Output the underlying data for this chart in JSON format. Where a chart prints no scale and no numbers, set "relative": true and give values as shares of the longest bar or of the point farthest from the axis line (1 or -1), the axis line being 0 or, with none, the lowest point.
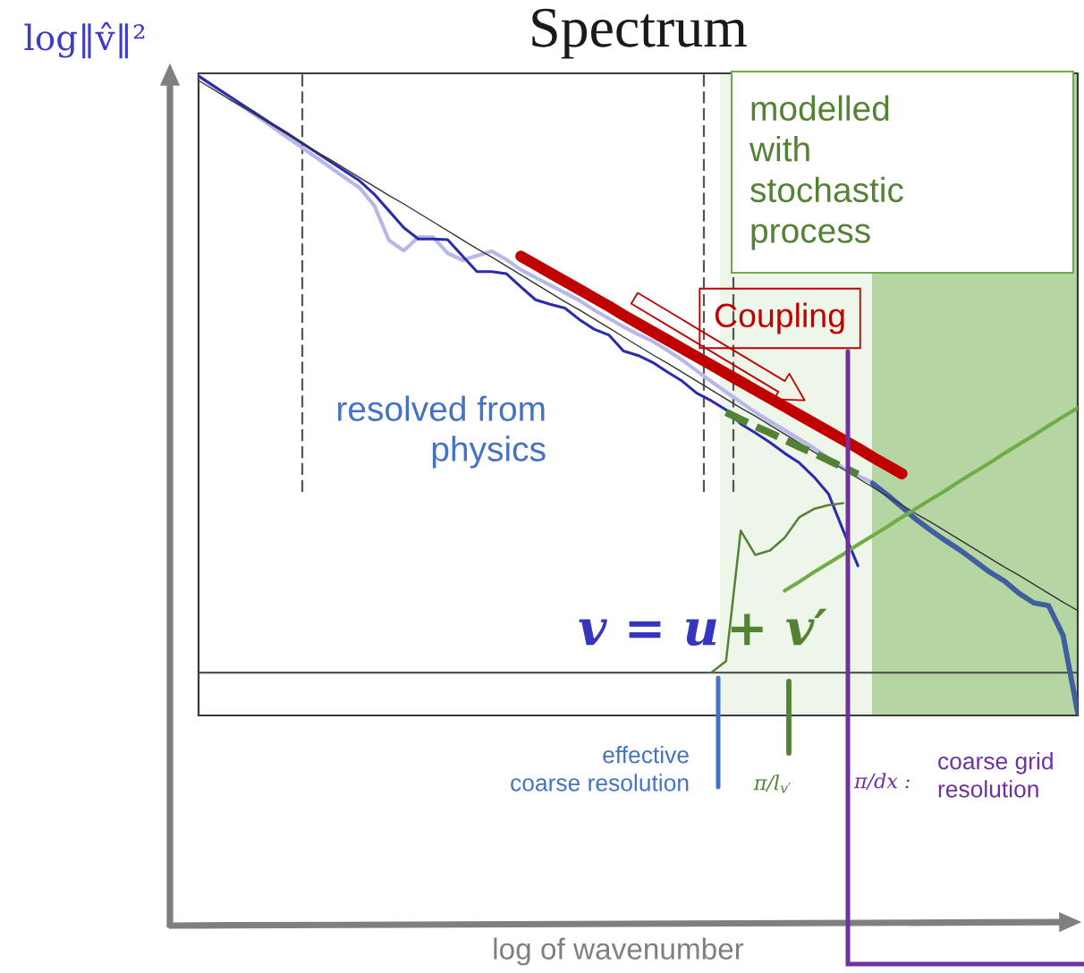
{
  "chart_data": {
    "type": "line",
    "title": "Spectrum",
    "ylabel": "log‖v̂‖²",
    "relative": true,
    "categories": [
      null,
      null,
      null,
      null,
      null,
      null,
      null,
      null,
      null,
      null,
      null,
      null,
      null,
      null,
      null,
      null,
      null,
      null,
      null,
      null,
      null,
      null,
      null,
      null,
      null,
      null,
      null,
      null,
      null,
      null,
      null,
      null,
      null,
      null,
      null,
      null,
      null,
      null,
      null,
      null,
      null,
      null,
      null,
      null,
      null,
      null,
      null,
      null,
      null,
      null,
      null,
      null,
      null,
      null,
      null,
      null,
      null,
      null,
      null,
      null,
      null
    ],
    "series": [
      {
        "color": "#b8b8e8",
        "values": [
          1.0,
          0.984,
          0.968,
          0.952,
          0.937,
          0.921,
          0.905,
          0.889,
          0.873,
          0.857,
          0.841,
          0.825,
          0.797,
          0.743,
          0.727,
          0.748,
          0.748,
          0.723,
          0.712,
          0.719,
          0.726,
          0.713,
          0.697,
          0.685,
          0.673,
          0.661,
          0.649,
          0.634,
          0.621,
          0.608,
          0.596,
          0.585,
          0.571,
          0.556,
          0.539,
          0.522,
          0.506,
          0.49,
          0.474,
          0.46,
          0.446,
          0.432,
          0.418,
          0.402,
          0.387,
          0.375,
          0.364,
          null,
          null,
          null,
          null,
          null,
          null,
          null,
          null,
          null,
          null,
          null,
          null,
          null,
          null
        ]
      },
      {
        "color": "#3f5f9f",
        "values": [
          null,
          null,
          null,
          null,
          null,
          null,
          null,
          null,
          null,
          null,
          null,
          null,
          null,
          null,
          null,
          null,
          null,
          null,
          null,
          null,
          null,
          null,
          null,
          null,
          null,
          null,
          null,
          null,
          null,
          null,
          null,
          null,
          null,
          null,
          null,
          null,
          null,
          null,
          null,
          null,
          null,
          null,
          null,
          null,
          null,
          null,
          0.363,
          0.345,
          0.326,
          0.306,
          0.289,
          0.273,
          0.258,
          0.241,
          0.224,
          0.21,
          0.191,
          0.176,
          0.172,
          0.125,
          0.004
        ]
      },
      {
        "color": "#2b2bb0",
        "values": [
          1.0,
          0.985,
          0.97,
          0.955,
          0.94,
          0.925,
          0.911,
          0.896,
          0.881,
          0.866,
          0.851,
          0.836,
          0.815,
          0.789,
          0.763,
          0.745,
          0.745,
          0.744,
          0.719,
          0.694,
          0.694,
          0.691,
          0.67,
          0.65,
          0.643,
          0.637,
          0.619,
          0.604,
          0.595,
          0.57,
          0.563,
          0.552,
          0.537,
          0.523,
          0.504,
          0.492,
          0.478,
          0.456,
          0.442,
          0.427,
          0.41,
          0.395,
          0.373,
          0.346,
          0.289,
          0.234,
          null,
          null,
          null,
          null,
          null,
          null,
          null,
          null,
          null,
          null,
          null,
          null,
          null,
          null,
          null
        ]
      },
      {
        "color": "#333333",
        "values": [
          0.993,
          0.979,
          0.965,
          0.952,
          0.938,
          0.924,
          0.91,
          0.896,
          0.882,
          0.869,
          0.855,
          0.841,
          0.827,
          0.813,
          0.8,
          0.786,
          0.772,
          0.758,
          0.744,
          0.73,
          0.717,
          0.703,
          0.689,
          0.675,
          0.661,
          0.647,
          0.634,
          0.62,
          0.606,
          0.592,
          0.578,
          0.564,
          0.551,
          0.537,
          0.523,
          0.509,
          0.495,
          0.481,
          0.468,
          0.454,
          0.44,
          0.426,
          0.412,
          0.398,
          0.385,
          0.371,
          0.357,
          0.343,
          0.329,
          0.315,
          0.302,
          0.288,
          0.274,
          0.26,
          0.246,
          0.232,
          0.219,
          0.205,
          0.191,
          0.177,
          0.164
        ]
      },
      {
        "color": "#548235",
        "values": [
          null,
          null,
          null,
          null,
          null,
          null,
          null,
          null,
          null,
          null,
          null,
          null,
          null,
          null,
          null,
          null,
          null,
          null,
          null,
          null,
          null,
          null,
          null,
          null,
          null,
          null,
          null,
          null,
          null,
          null,
          null,
          null,
          null,
          null,
          null,
          0.067,
          0.085,
          0.289,
          0.251,
          0.258,
          0.278,
          0.31,
          0.323,
          0.329,
          0.332,
          null,
          null,
          null,
          null,
          null,
          null,
          null,
          null,
          null,
          null,
          null,
          null,
          null,
          null,
          null,
          null
        ]
      },
      {
        "color": "#548235",
        "line_style": "dashed",
        "values": [
          null,
          null,
          null,
          null,
          null,
          null,
          null,
          null,
          null,
          null,
          null,
          null,
          null,
          null,
          null,
          null,
          null,
          null,
          null,
          null,
          null,
          null,
          null,
          null,
          null,
          null,
          null,
          null,
          null,
          null,
          null,
          null,
          null,
          null,
          null,
          null,
          0.474,
          0.463,
          0.452,
          0.442,
          0.431,
          0.42,
          0.41,
          0.399,
          0.388,
          0.377,
          null,
          null,
          null,
          null,
          null,
          null,
          null,
          null,
          null,
          null,
          null,
          null,
          null,
          null,
          null
        ]
      },
      {
        "name": "Coupling",
        "color": "#c00000",
        "values": [
          null,
          null,
          null,
          null,
          null,
          null,
          null,
          null,
          null,
          null,
          null,
          null,
          null,
          null,
          null,
          null,
          null,
          null,
          null,
          null,
          null,
          null,
          0.718,
          0.705,
          0.692,
          0.679,
          0.666,
          0.653,
          0.64,
          0.626,
          0.613,
          0.6,
          0.587,
          0.574,
          0.561,
          0.548,
          0.535,
          0.522,
          0.509,
          0.496,
          0.483,
          0.47,
          0.457,
          0.444,
          0.431,
          0.418,
          0.404,
          0.391,
          0.378,
          null,
          null,
          null,
          null,
          null,
          null,
          null,
          null,
          null,
          null,
          null,
          null
        ]
      },
      {
        "color": "#70ad47",
        "values": [
          null,
          null,
          null,
          null,
          null,
          null,
          null,
          null,
          null,
          null,
          null,
          null,
          null,
          null,
          null,
          null,
          null,
          null,
          null,
          null,
          null,
          null,
          null,
          null,
          null,
          null,
          null,
          null,
          null,
          null,
          null,
          null,
          null,
          null,
          null,
          null,
          null,
          null,
          null,
          null,
          0.195,
          0.209,
          0.224,
          0.238,
          0.252,
          0.267,
          0.281,
          0.295,
          0.31,
          0.324,
          0.338,
          0.352,
          0.367,
          0.381,
          0.395,
          0.41,
          0.424,
          0.438,
          0.453,
          0.467,
          0.481
        ]
      }
    ],
    "ref_lines": [
      {
        "axis": "y",
        "value": 0.067,
        "color": "#555555"
      }
    ],
    "annotations": [
      "resolved from\nphysics",
      "modelled\nwith\nstochastic\nprocess",
      "v = u",
      "+ v′",
      "coarse grid\nresolution",
      "effective\ncoarse resolution",
      "π/l$_{v′}$",
      "π/dx :",
      "log of wavenumber"
    ]
  }
}
